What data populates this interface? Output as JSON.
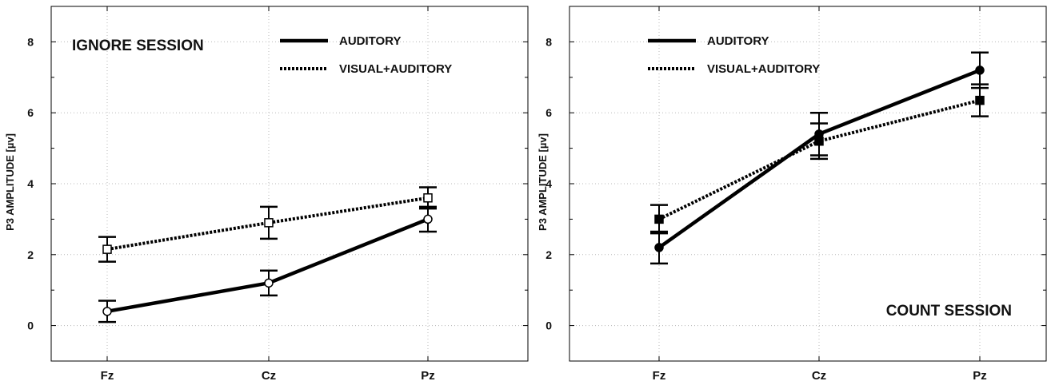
{
  "chart_data": [
    {
      "type": "line",
      "title": "IGNORE SESSION",
      "xlabel": "",
      "ylabel": "P3 AMPLITUDE [µv]",
      "categories": [
        "Fz",
        "Cz",
        "Pz"
      ],
      "ylim": [
        -1,
        9
      ],
      "yticks": [
        0,
        2,
        4,
        6,
        8
      ],
      "grid": true,
      "legend_position": "top-right",
      "series": [
        {
          "name": "AUDITORY",
          "line_style": "solid",
          "marker": "open-circle",
          "values": [
            0.4,
            1.2,
            3.0
          ],
          "errors": [
            0.3,
            0.35,
            0.35
          ]
        },
        {
          "name": "VISUAL+AUDITORY",
          "line_style": "dotted",
          "marker": "open-square",
          "values": [
            2.15,
            2.9,
            3.6
          ],
          "errors": [
            0.35,
            0.45,
            0.3
          ]
        }
      ]
    },
    {
      "type": "line",
      "title": "COUNT SESSION",
      "xlabel": "",
      "ylabel": "P3 AMPLITUDE [µv]",
      "categories": [
        "Fz",
        "Cz",
        "Pz"
      ],
      "ylim": [
        -1,
        9
      ],
      "yticks": [
        0,
        2,
        4,
        6,
        8
      ],
      "grid": true,
      "legend_position": "top-left",
      "series": [
        {
          "name": "AUDITORY",
          "line_style": "solid",
          "marker": "filled-circle",
          "values": [
            2.2,
            5.4,
            7.2
          ],
          "errors": [
            0.45,
            0.6,
            0.5
          ]
        },
        {
          "name": "VISUAL+AUDITORY",
          "line_style": "dotted",
          "marker": "filled-square",
          "values": [
            3.0,
            5.2,
            6.35
          ],
          "errors": [
            0.4,
            0.5,
            0.45
          ]
        }
      ]
    }
  ]
}
